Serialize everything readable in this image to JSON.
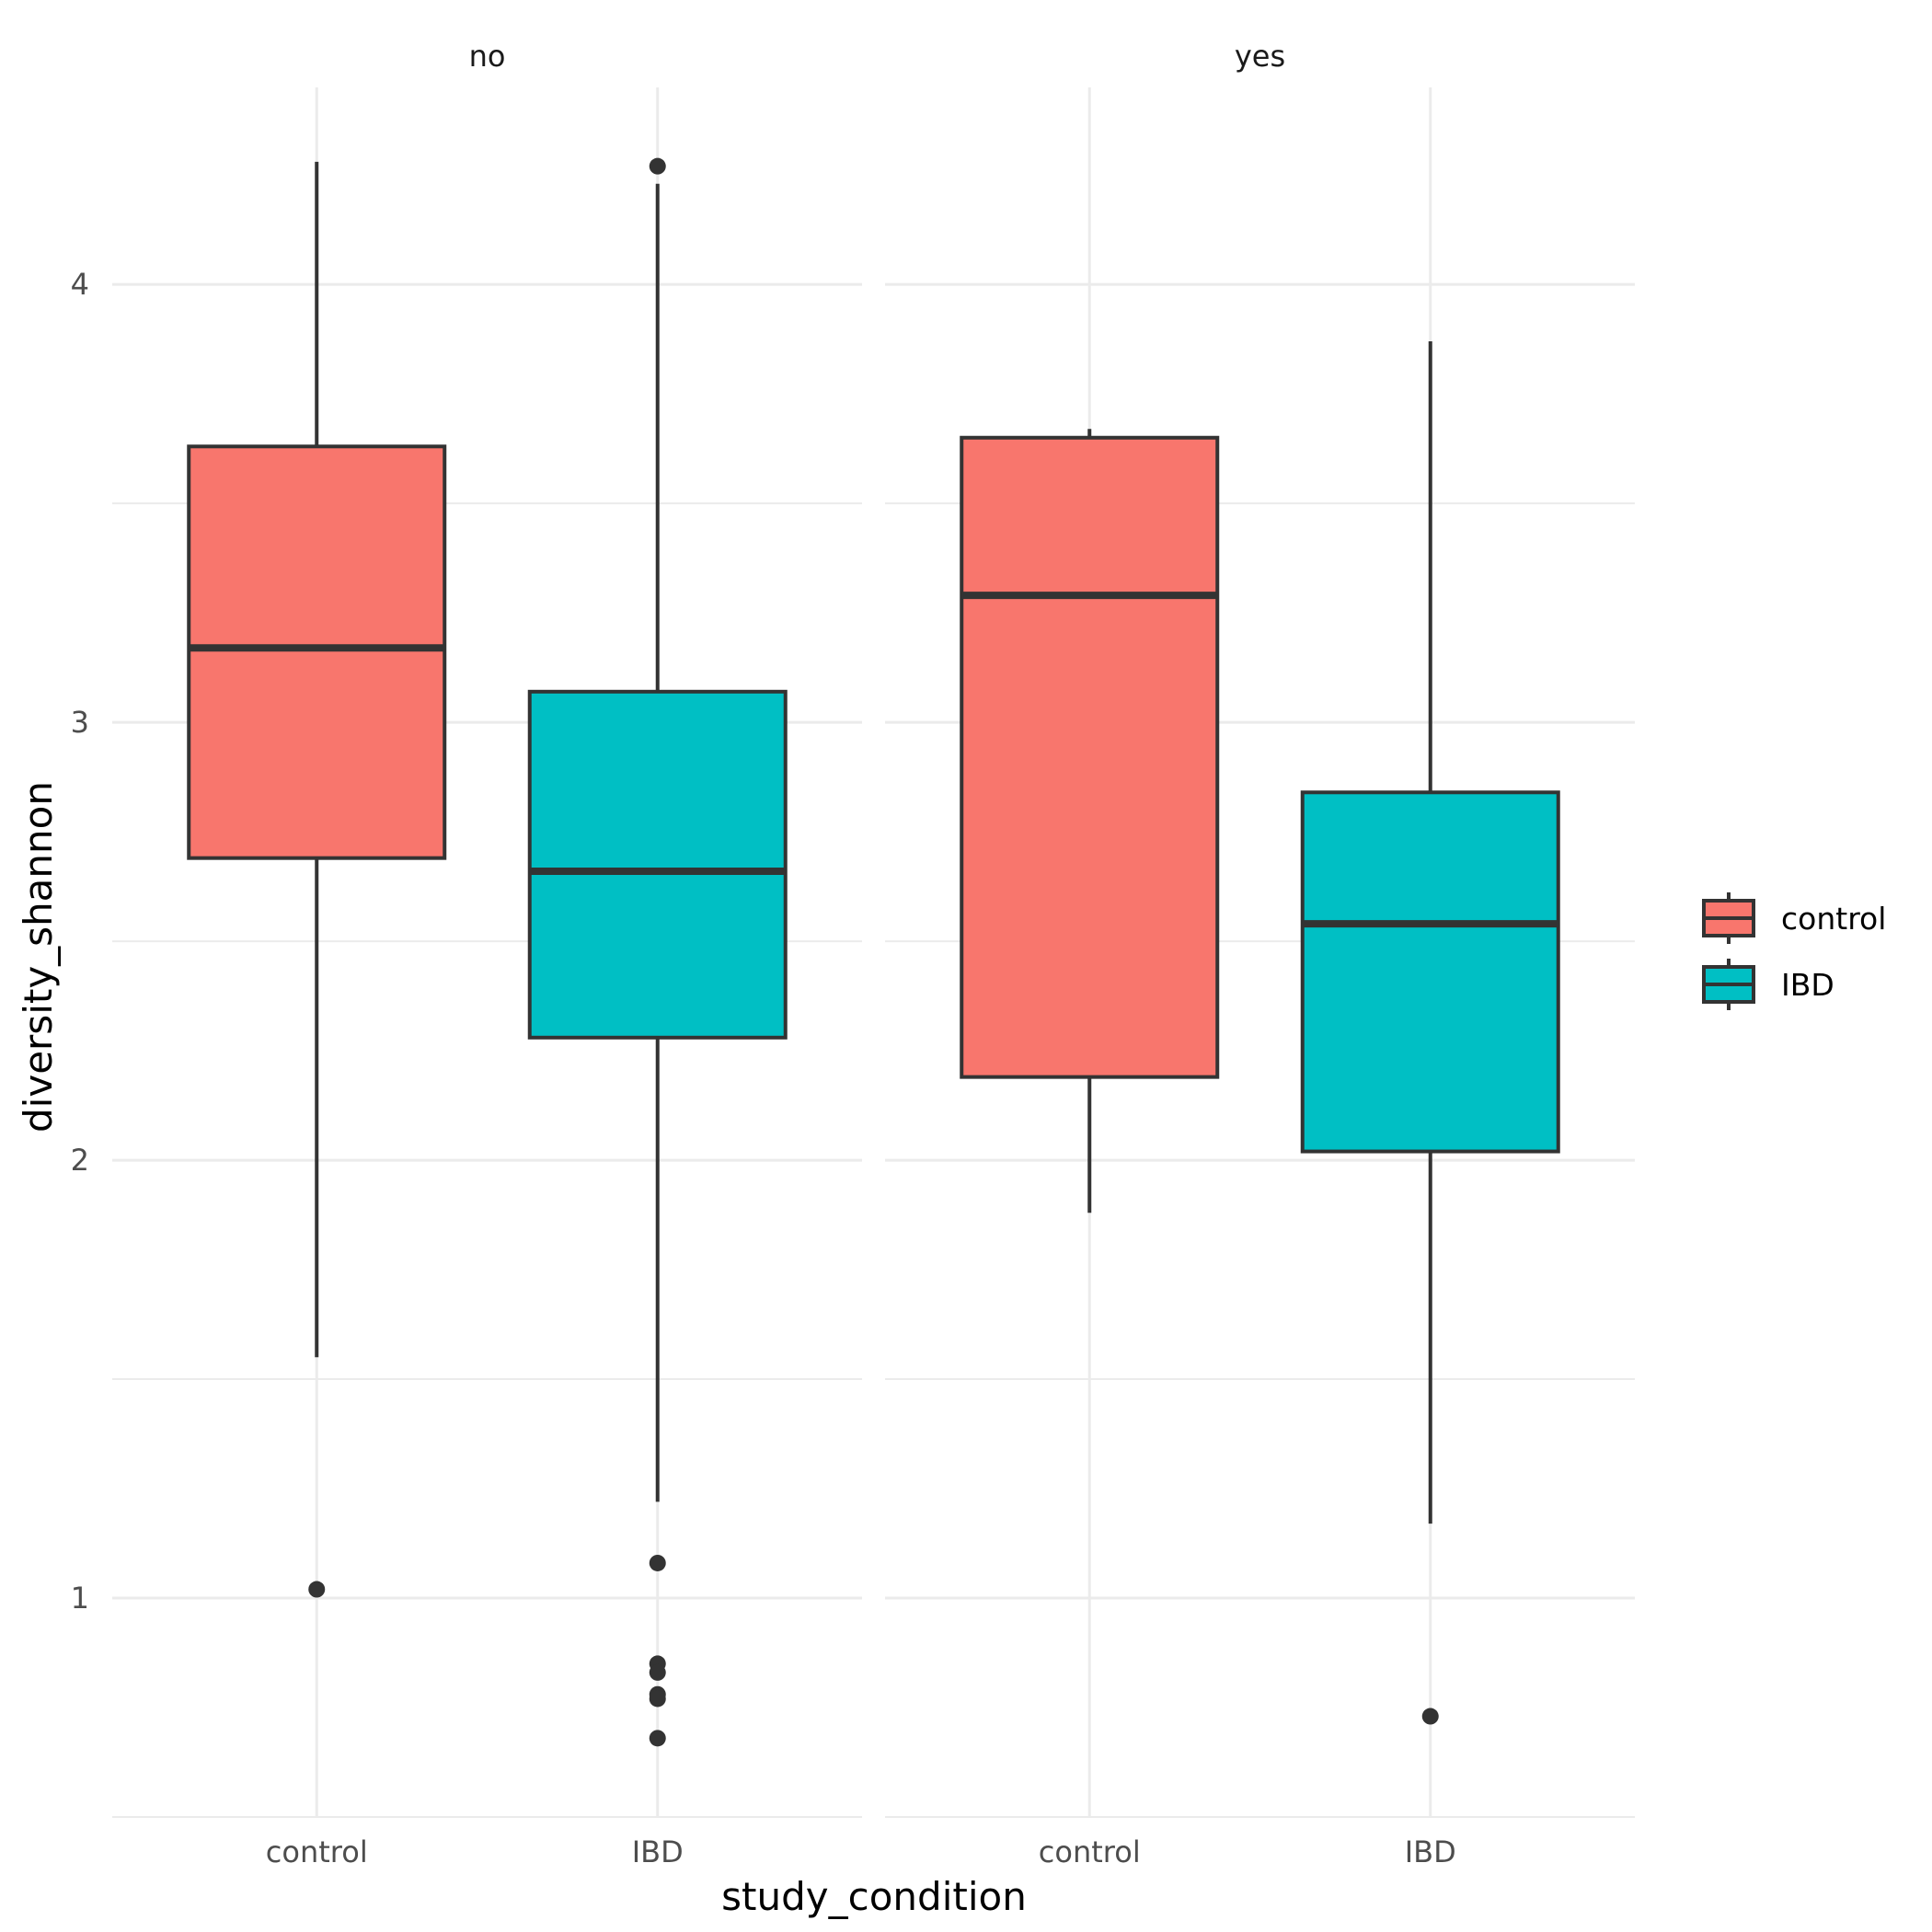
{
  "chart_data": {
    "type": "boxplot",
    "xlabel": "study_condition",
    "ylabel": "diversity_shannon",
    "ylim": [
      0.5,
      4.45
    ],
    "y_ticks": [
      1,
      2,
      3,
      4
    ],
    "categories": [
      "control",
      "IBD"
    ],
    "facets": [
      {
        "label": "no",
        "boxes": [
          {
            "category": "control",
            "group": "control",
            "lower_whisker": 1.55,
            "q1": 2.69,
            "median": 3.17,
            "q3": 3.63,
            "upper_whisker": 4.28,
            "outliers": [
              1.02
            ]
          },
          {
            "category": "IBD",
            "group": "IBD",
            "lower_whisker": 1.22,
            "q1": 2.28,
            "median": 2.66,
            "q3": 3.07,
            "upper_whisker": 4.23,
            "outliers": [
              4.27,
              1.08,
              0.85,
              0.83,
              0.78,
              0.77,
              0.68
            ]
          }
        ]
      },
      {
        "label": "yes",
        "boxes": [
          {
            "category": "control",
            "group": "control",
            "lower_whisker": 1.88,
            "q1": 2.19,
            "median": 3.29,
            "q3": 3.65,
            "upper_whisker": 3.67,
            "outliers": []
          },
          {
            "category": "IBD",
            "group": "IBD",
            "lower_whisker": 1.17,
            "q1": 2.02,
            "median": 2.54,
            "q3": 2.84,
            "upper_whisker": 3.87,
            "outliers": [
              0.73
            ]
          }
        ]
      }
    ],
    "legend": {
      "position": "right",
      "items": [
        {
          "label": "control",
          "color": "#F8766D"
        },
        {
          "label": "IBD",
          "color": "#00BFC4"
        }
      ]
    },
    "grid": true
  }
}
